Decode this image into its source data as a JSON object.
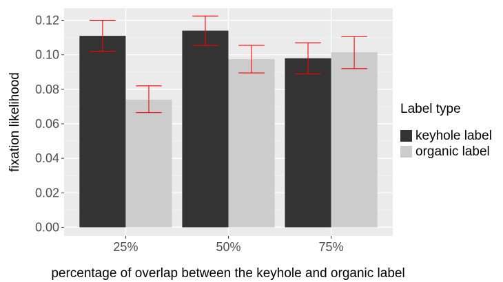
{
  "chart_data": {
    "type": "bar",
    "title": "",
    "xlabel": "percentage of overlap between the keyhole and organic label",
    "ylabel": "fixation likelihood",
    "categories": [
      "25%",
      "50%",
      "75%"
    ],
    "ylim": [
      -0.005,
      0.127
    ],
    "yticks": [
      0.0,
      0.02,
      0.04,
      0.06,
      0.08,
      0.1,
      0.12
    ],
    "ytick_labels": [
      "0.00",
      "0.02",
      "0.04",
      "0.06",
      "0.08",
      "0.10",
      "0.12"
    ],
    "grid": true,
    "legend_title": "Label type",
    "legend_position": "right",
    "series": [
      {
        "name": "keyhole label",
        "color": "#333333",
        "values": [
          0.111,
          0.114,
          0.098
        ],
        "error_low": [
          0.102,
          0.1055,
          0.089
        ],
        "error_high": [
          0.12,
          0.1225,
          0.107
        ]
      },
      {
        "name": "organic label",
        "color": "#cccccc",
        "values": [
          0.074,
          0.0975,
          0.1015
        ],
        "error_low": [
          0.0665,
          0.0895,
          0.092
        ],
        "error_high": [
          0.082,
          0.1055,
          0.1105
        ]
      }
    ],
    "error_bar_color": "#ff0000",
    "panel_color": "#ebebeb"
  }
}
